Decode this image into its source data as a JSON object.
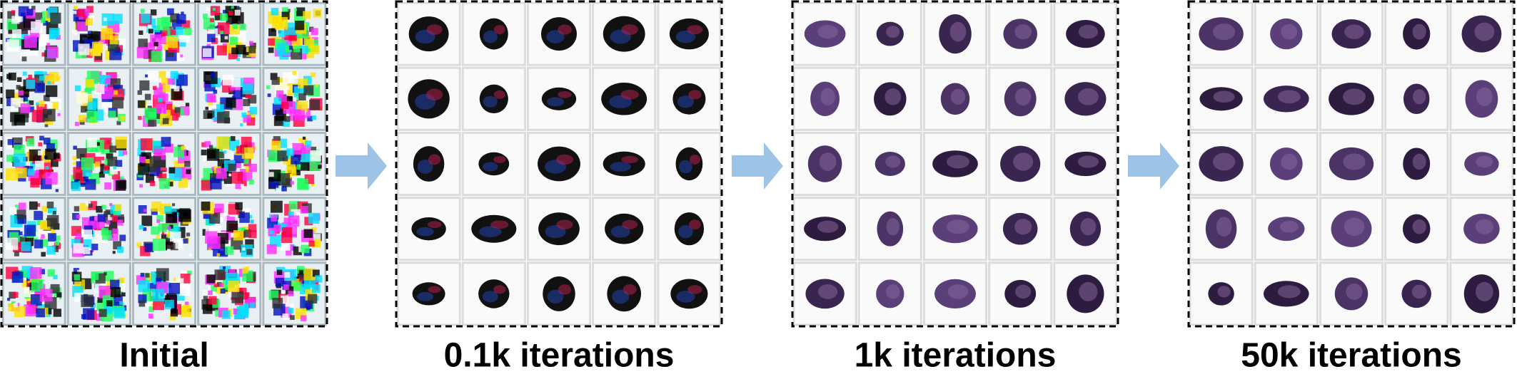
{
  "panels": [
    {
      "label": "Initial"
    },
    {
      "label": "0.1k iterations"
    },
    {
      "label": "1k iterations"
    },
    {
      "label": "50k iterations"
    }
  ]
}
